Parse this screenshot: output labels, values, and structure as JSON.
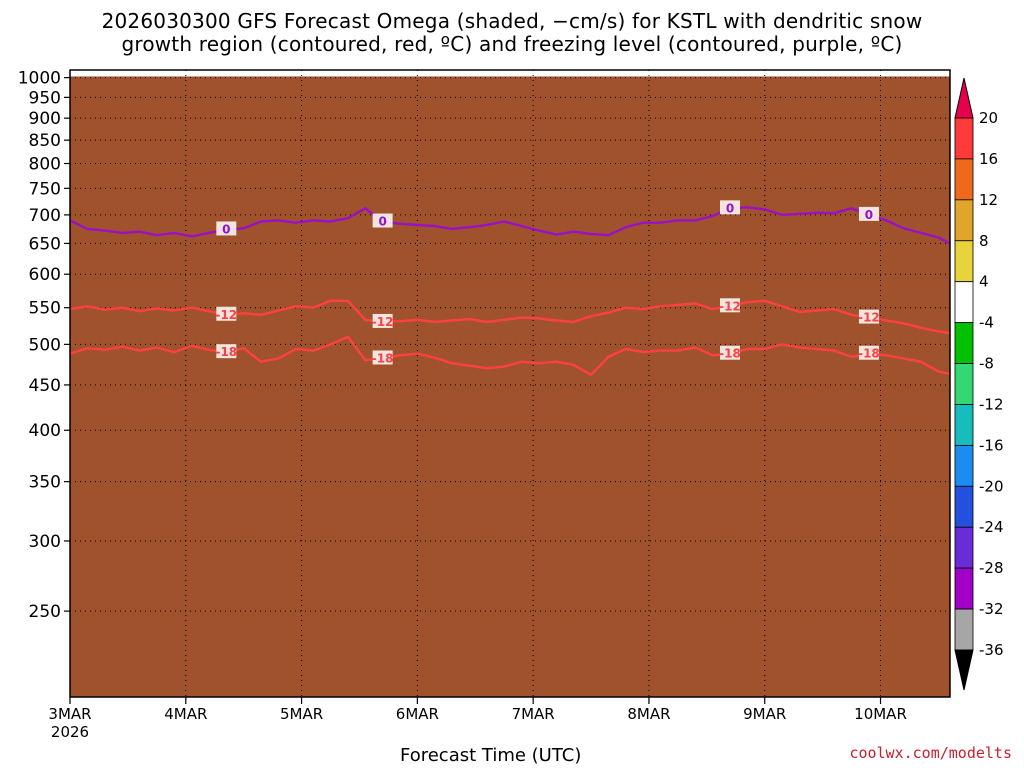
{
  "title_line1": "2026030300 GFS Forecast Omega (shaded, −cm/s) for KSTL with dendritic snow",
  "title_line2": "growth region (contoured, red, ºC) and freezing level (contoured, purple, ºC)",
  "attribution": "coolwx.com/modelts",
  "chart_data": {
    "type": "heatmap",
    "xlabel": "Forecast Time (UTC)",
    "x_ticks": [
      "3MAR",
      "4MAR",
      "5MAR",
      "6MAR",
      "7MAR",
      "8MAR",
      "9MAR",
      "10MAR"
    ],
    "x_start_year_label": "2026",
    "xlim_days": [
      0,
      7.6
    ],
    "ylabel": "",
    "y_ticks": [
      250,
      300,
      350,
      400,
      450,
      500,
      550,
      600,
      650,
      700,
      750,
      800,
      850,
      900,
      950,
      1000
    ],
    "ylim_hpa": [
      1020,
      200
    ],
    "grid": "dotted",
    "colorbar": {
      "labels": [
        20,
        16,
        12,
        8,
        4,
        -4,
        -8,
        -12,
        -16,
        -20,
        -24,
        -28,
        -32,
        -36
      ],
      "colors": [
        "#e7004c",
        "#ff3a3a",
        "#ee6a1a",
        "#e0a52a",
        "#e8d43a",
        "#ffffff",
        "#00c000",
        "#33d873",
        "#17bcbc",
        "#1a8ef0",
        "#2450e0",
        "#6a2cd8",
        "#a000c8",
        "#a6a6a6",
        "#000000"
      ],
      "position": "right"
    },
    "series": [
      {
        "name": "-18",
        "color": "#ff4040",
        "x": [
          0,
          0.15,
          0.3,
          0.45,
          0.6,
          0.75,
          0.9,
          1.05,
          1.2,
          1.35,
          1.5,
          1.65,
          1.8,
          1.95,
          2.1,
          2.25,
          2.4,
          2.55,
          2.7,
          2.85,
          3.0,
          3.15,
          3.3,
          3.45,
          3.6,
          3.75,
          3.9,
          4.05,
          4.2,
          4.35,
          4.5,
          4.65,
          4.8,
          4.95,
          5.1,
          5.25,
          5.4,
          5.55,
          5.7,
          5.85,
          6.0,
          6.15,
          6.3,
          6.45,
          6.6,
          6.75,
          6.9,
          7.05,
          7.2,
          7.35,
          7.5,
          7.6
        ],
        "y": [
          488,
          495,
          493,
          497,
          492,
          496,
          490,
          498,
          493,
          490,
          495,
          478,
          482,
          494,
          492,
          500,
          510,
          480,
          482,
          486,
          488,
          483,
          476,
          473,
          470,
          472,
          478,
          476,
          478,
          474,
          462,
          484,
          494,
          490,
          492,
          492,
          496,
          486,
          488,
          494,
          494,
          500,
          496,
          494,
          492,
          484,
          488,
          486,
          482,
          478,
          466,
          463
        ]
      },
      {
        "name": "-12",
        "color": "#ff4040",
        "x": [
          0,
          0.15,
          0.3,
          0.45,
          0.6,
          0.75,
          0.9,
          1.05,
          1.2,
          1.35,
          1.5,
          1.65,
          1.8,
          1.95,
          2.1,
          2.25,
          2.4,
          2.55,
          2.7,
          2.85,
          3.0,
          3.15,
          3.3,
          3.45,
          3.6,
          3.75,
          3.9,
          4.05,
          4.2,
          4.35,
          4.5,
          4.65,
          4.8,
          4.95,
          5.1,
          5.25,
          5.4,
          5.55,
          5.7,
          5.85,
          6.0,
          6.15,
          6.3,
          6.45,
          6.6,
          6.75,
          6.9,
          7.05,
          7.2,
          7.35,
          7.5,
          7.6
        ],
        "y": [
          548,
          552,
          547,
          550,
          545,
          549,
          546,
          550,
          545,
          540,
          542,
          540,
          546,
          552,
          550,
          560,
          560,
          533,
          530,
          531,
          533,
          530,
          532,
          534,
          530,
          533,
          536,
          535,
          532,
          530,
          538,
          543,
          550,
          548,
          552,
          554,
          556,
          548,
          552,
          558,
          560,
          552,
          544,
          546,
          548,
          540,
          536,
          532,
          528,
          522,
          517,
          515
        ]
      },
      {
        "name": "0",
        "color": "#9a10c8",
        "x": [
          0,
          0.15,
          0.3,
          0.45,
          0.6,
          0.75,
          0.9,
          1.05,
          1.2,
          1.35,
          1.5,
          1.65,
          1.8,
          1.95,
          2.1,
          2.25,
          2.4,
          2.55,
          2.7,
          2.85,
          3.0,
          3.15,
          3.3,
          3.45,
          3.6,
          3.75,
          3.9,
          4.05,
          4.2,
          4.35,
          4.5,
          4.65,
          4.8,
          4.95,
          5.1,
          5.25,
          5.4,
          5.55,
          5.7,
          5.85,
          6.0,
          6.15,
          6.3,
          6.45,
          6.6,
          6.75,
          6.9,
          7.05,
          7.2,
          7.35,
          7.5,
          7.6
        ],
        "y": [
          690,
          675,
          672,
          668,
          670,
          664,
          668,
          662,
          668,
          674,
          676,
          688,
          690,
          686,
          690,
          688,
          694,
          712,
          688,
          684,
          682,
          680,
          675,
          678,
          682,
          688,
          680,
          672,
          665,
          670,
          666,
          664,
          678,
          686,
          686,
          690,
          690,
          698,
          712,
          714,
          710,
          700,
          702,
          704,
          703,
          712,
          700,
          690,
          676,
          668,
          660,
          650
        ]
      }
    ],
    "contour_labels": [
      "-18",
      "-12",
      "0"
    ]
  }
}
